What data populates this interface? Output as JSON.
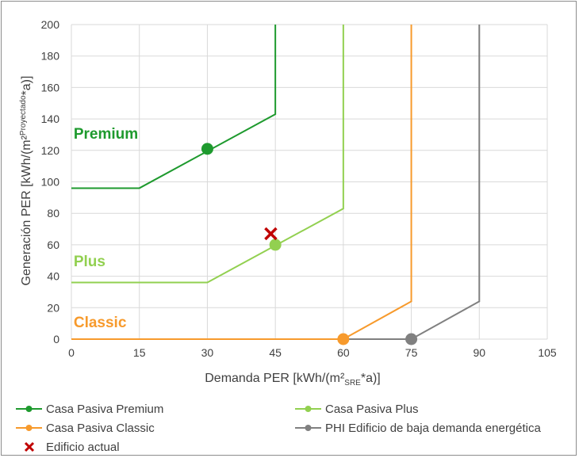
{
  "chart_data": {
    "type": "line",
    "xlabel": {
      "main": "Demanda  PER [kWh/(m²",
      "sub": "SRE",
      "post": "*a)]"
    },
    "ylabel": {
      "main": "Generación  PER [kWh/(m²",
      "sub": "Proyectado",
      "post": "*a)]"
    },
    "xlim": [
      0,
      105
    ],
    "ylim": [
      0,
      200
    ],
    "xticks": [
      0,
      15,
      30,
      45,
      60,
      75,
      90,
      105
    ],
    "yticks": [
      0,
      20,
      40,
      60,
      80,
      100,
      120,
      140,
      160,
      180,
      200
    ],
    "grid": true,
    "legend_position": "bottom",
    "series": [
      {
        "name": "Casa Pasiva Premium",
        "color": "#1e9a2e",
        "line": [
          [
            0,
            96
          ],
          [
            15,
            96
          ],
          [
            45,
            143
          ],
          [
            45,
            200
          ]
        ],
        "markers": [
          [
            30,
            121
          ]
        ]
      },
      {
        "name": "Casa Pasiva Plus",
        "color": "#92d050",
        "line": [
          [
            0,
            36
          ],
          [
            30,
            36
          ],
          [
            60,
            83
          ],
          [
            60,
            200
          ]
        ],
        "markers": [
          [
            45,
            60
          ]
        ]
      },
      {
        "name": "Casa Pasiva Classic",
        "color": "#f79a2c",
        "line": [
          [
            0,
            0
          ],
          [
            60,
            0
          ],
          [
            75,
            24
          ],
          [
            75,
            200
          ]
        ],
        "markers": [
          [
            60,
            0
          ]
        ]
      },
      {
        "name": "PHI Edificio de baja demanda energética",
        "color": "#808080",
        "line": [
          [
            0,
            0
          ],
          [
            75,
            0
          ],
          [
            90,
            24
          ],
          [
            90,
            200
          ]
        ],
        "markers": [
          [
            75,
            0
          ]
        ]
      }
    ],
    "annotations": [
      {
        "text": "Premium",
        "color": "#1e9a2e",
        "x": 0.5,
        "y": 131
      },
      {
        "text": "Plus",
        "color": "#92d050",
        "x": 0.5,
        "y": 50
      },
      {
        "text": "Classic",
        "color": "#f79a2c",
        "x": 0.5,
        "y": 11
      }
    ],
    "current_building": {
      "name": "Edificio actual",
      "color": "#c00000",
      "x": 44,
      "y": 67
    }
  }
}
